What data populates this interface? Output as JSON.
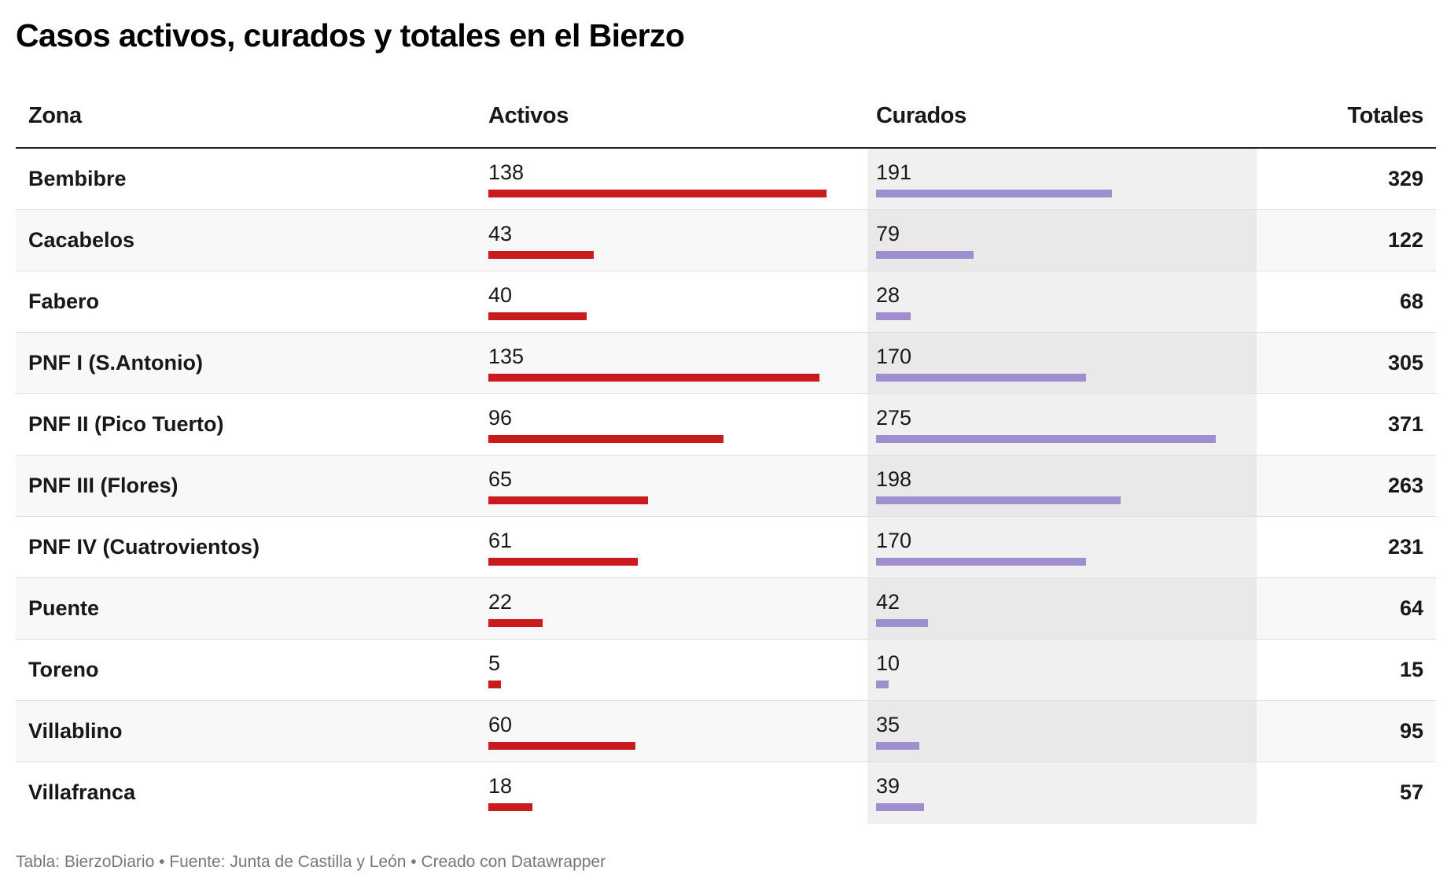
{
  "title": "Casos activos, curados y totales en el Bierzo",
  "footer": "Tabla: BierzoDiario • Fuente: Junta de Castilla y León • Creado con Datawrapper",
  "colors": {
    "activos": "#c81a1f",
    "curados": "#9f8fce"
  },
  "chart_data": {
    "type": "table",
    "title": "Casos activos, curados y totales en el Bierzo",
    "columns": [
      "Zona",
      "Activos",
      "Curados",
      "Totales"
    ],
    "activos_max": 138,
    "curados_max": 275,
    "rows": [
      {
        "zona": "Bembibre",
        "activos": 138,
        "curados": 191,
        "totales": 329
      },
      {
        "zona": "Cacabelos",
        "activos": 43,
        "curados": 79,
        "totales": 122
      },
      {
        "zona": "Fabero",
        "activos": 40,
        "curados": 28,
        "totales": 68
      },
      {
        "zona": "PNF I (S.Antonio)",
        "activos": 135,
        "curados": 170,
        "totales": 305
      },
      {
        "zona": "PNF II (Pico Tuerto)",
        "activos": 96,
        "curados": 275,
        "totales": 371
      },
      {
        "zona": "PNF III (Flores)",
        "activos": 65,
        "curados": 198,
        "totales": 263
      },
      {
        "zona": "PNF IV (Cuatrovientos)",
        "activos": 61,
        "curados": 170,
        "totales": 231
      },
      {
        "zona": "Puente",
        "activos": 22,
        "curados": 42,
        "totales": 64
      },
      {
        "zona": "Toreno",
        "activos": 5,
        "curados": 10,
        "totales": 15
      },
      {
        "zona": "Villablino",
        "activos": 60,
        "curados": 35,
        "totales": 95
      },
      {
        "zona": "Villafranca",
        "activos": 18,
        "curados": 39,
        "totales": 57
      }
    ]
  }
}
